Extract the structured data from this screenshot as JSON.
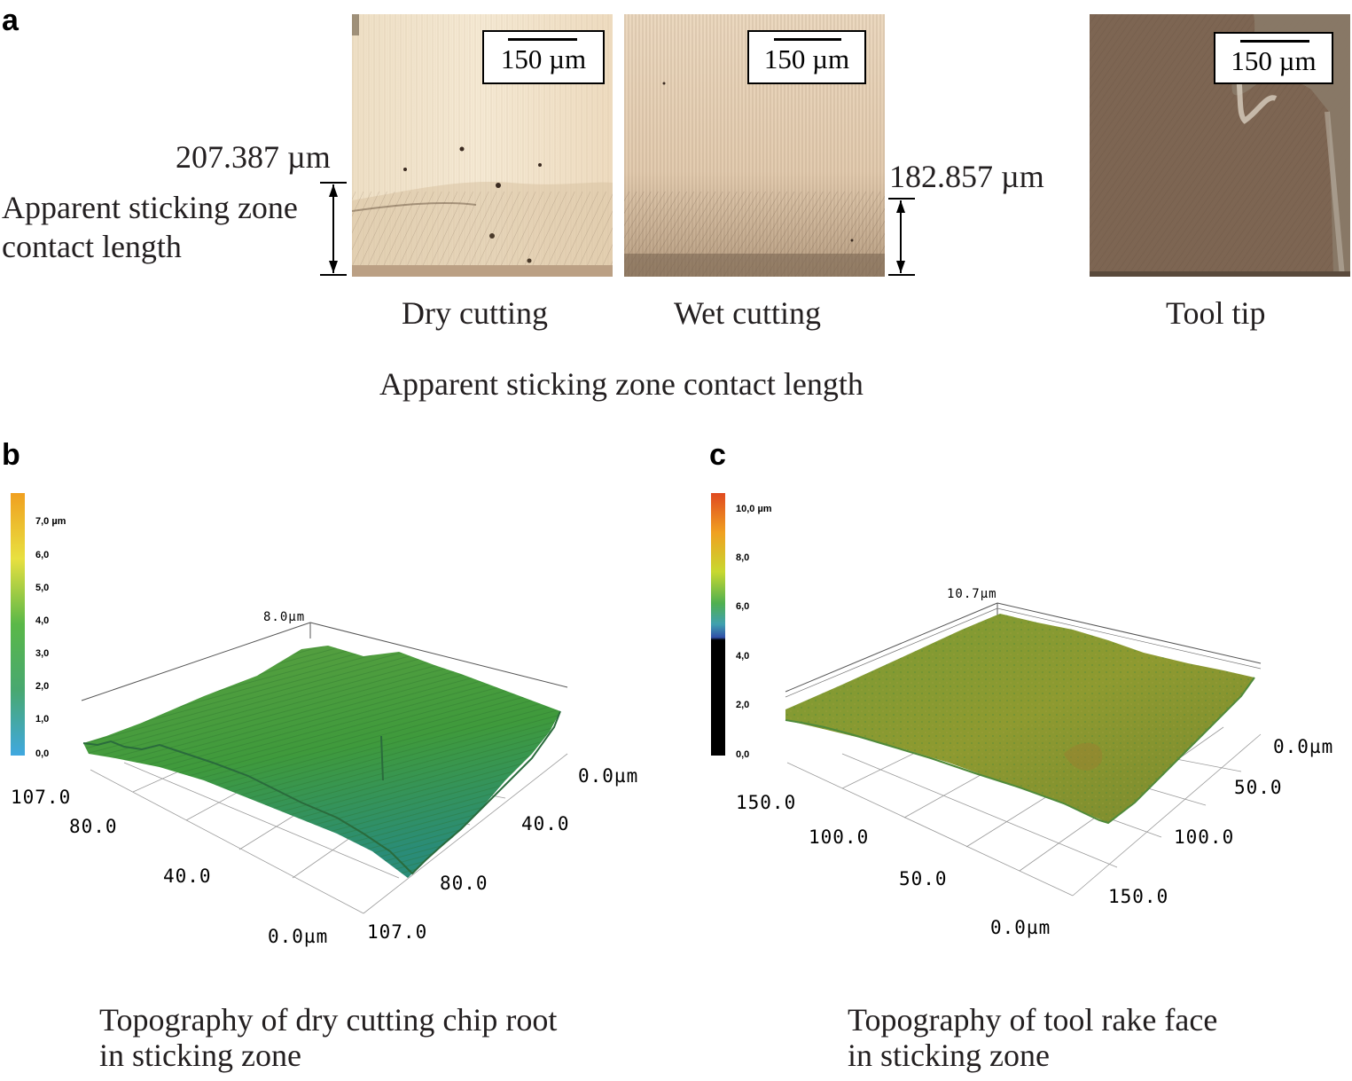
{
  "panel_a": {
    "letter": "a",
    "micrographs": [
      {
        "name": "dry",
        "scale_bar": "150 µm",
        "caption": "Dry cutting"
      },
      {
        "name": "wet",
        "scale_bar": "150 µm",
        "caption": "Wet cutting"
      },
      {
        "name": "tool",
        "scale_bar": "150 µm",
        "caption": "Tool tip"
      }
    ],
    "dry_length": "207.387 µm",
    "wet_length": "182.857 µm",
    "side_label_line1": "Apparent sticking zone",
    "side_label_line2": "contact length",
    "title": "Apparent sticking zone contact length"
  },
  "panel_b": {
    "letter": "b",
    "colorbar_ticks": [
      "7,0 µm",
      "6,0",
      "5,0",
      "4,0",
      "3,0",
      "2,0",
      "1,0",
      "0,0"
    ],
    "z_top": "8.0µm",
    "left_axis": [
      "107.0",
      "80.0",
      "40.0",
      "0.0µm"
    ],
    "right_axis": [
      "0.0µm",
      "40.0",
      "80.0",
      "107.0"
    ],
    "caption_line1": "Topography of dry cutting chip root",
    "caption_line2": "in sticking zone",
    "colors": {
      "surface_high": "#4b9a3a",
      "surface_low": "#2c8f70",
      "colorbar_top": "#f0a020",
      "colorbar_mid": "#45a849",
      "colorbar_bottom": "#40a8d8"
    }
  },
  "panel_c": {
    "letter": "c",
    "colorbar_ticks": [
      "10,0 µm",
      "8,0",
      "6,0",
      "4,0",
      "2,0",
      "0,0"
    ],
    "z_top": "10.7µm",
    "left_axis": [
      "150.0",
      "100.0",
      "50.0",
      "0.0µm"
    ],
    "right_axis": [
      "0.0µm",
      "50.0",
      "100.0",
      "150.0"
    ],
    "caption_line1": "Topography of tool rake face",
    "caption_line2": "in sticking zone",
    "colors": {
      "surface_high": "#8a9a32",
      "surface_low": "#6a9a3a",
      "colorbar_top": "#e05020",
      "colorbar_mid": "#50b050",
      "colorbar_bottom": "#000000"
    }
  }
}
